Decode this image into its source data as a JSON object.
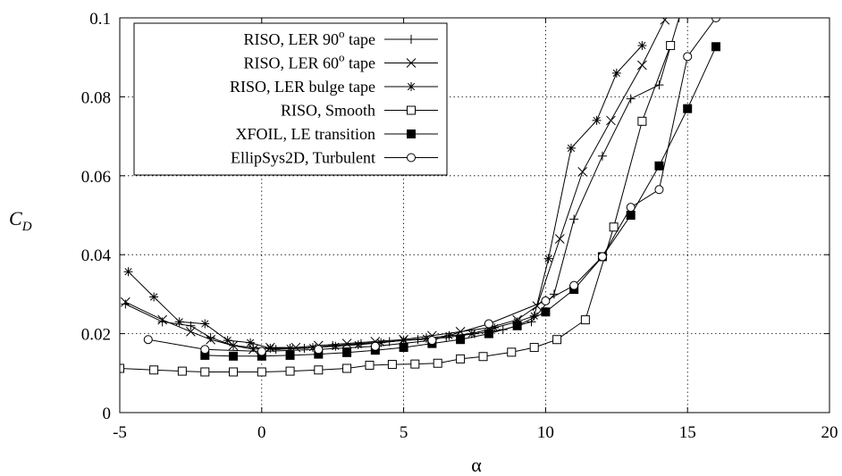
{
  "chart_data": {
    "type": "line",
    "xlabel": "α",
    "ylabel": "C",
    "ylabel_sub": "D",
    "xlim": [
      -5,
      20
    ],
    "ylim": [
      0,
      0.1
    ],
    "xticks": [
      "-5",
      "0",
      "5",
      "10",
      "15",
      "20"
    ],
    "yticks": [
      "0",
      "0.02",
      "0.04",
      "0.06",
      "0.08",
      "0.1"
    ],
    "xtick_values": [
      -5,
      0,
      5,
      10,
      15,
      20
    ],
    "ytick_values": [
      0,
      0.02,
      0.04,
      0.06,
      0.08,
      0.1
    ],
    "grid": true,
    "legend_position": "top-left",
    "series": [
      {
        "name": "RISO, LER 90",
        "name_sup": "o",
        "name_suffix": " tape",
        "marker": "plus",
        "x": [
          -4.8,
          -3.5,
          -2.5,
          -1.8,
          -1.0,
          -0.3,
          0.5,
          1.5,
          2.5,
          3.5,
          4.5,
          5.5,
          6.5,
          7.5,
          8.5,
          9.5,
          10.3,
          11.0,
          12.0,
          13.0,
          14.0,
          14.7
        ],
        "y": [
          0.0275,
          0.023,
          0.022,
          0.019,
          0.017,
          0.0165,
          0.016,
          0.0163,
          0.017,
          0.0175,
          0.018,
          0.0185,
          0.019,
          0.02,
          0.021,
          0.023,
          0.03,
          0.049,
          0.065,
          0.0795,
          0.083,
          0.1
        ]
      },
      {
        "name": "RISO, LER 60",
        "name_sup": "o",
        "name_suffix": " tape",
        "marker": "x",
        "x": [
          -4.8,
          -3.5,
          -2.5,
          -1.8,
          -1.0,
          -0.3,
          0.3,
          1.2,
          2.0,
          3.0,
          4.0,
          5.0,
          6.0,
          7.0,
          8.0,
          9.0,
          9.7,
          10.5,
          11.3,
          12.3,
          13.4,
          14.2
        ],
        "y": [
          0.028,
          0.0235,
          0.0205,
          0.0185,
          0.017,
          0.016,
          0.0165,
          0.0165,
          0.017,
          0.0175,
          0.018,
          0.0185,
          0.0195,
          0.0205,
          0.0215,
          0.0235,
          0.027,
          0.044,
          0.061,
          0.074,
          0.088,
          0.0995
        ]
      },
      {
        "name": "RISO, LER bulge tape",
        "name_sup": "",
        "name_suffix": "",
        "marker": "star",
        "x": [
          -4.7,
          -3.8,
          -2.9,
          -2.0,
          -1.2,
          -0.4,
          0.3,
          1.0,
          1.8,
          2.6,
          3.4,
          4.2,
          5.0,
          5.8,
          6.6,
          7.4,
          8.2,
          9.0,
          9.6,
          10.1,
          10.9,
          11.8,
          12.5,
          13.4
        ],
        "y": [
          0.0357,
          0.0293,
          0.023,
          0.0225,
          0.0183,
          0.0177,
          0.0163,
          0.0163,
          0.0165,
          0.0168,
          0.0172,
          0.0177,
          0.0183,
          0.0188,
          0.0195,
          0.02,
          0.0215,
          0.023,
          0.0245,
          0.039,
          0.067,
          0.074,
          0.086,
          0.093
        ]
      },
      {
        "name": "RISO, Smooth",
        "name_sup": "",
        "name_suffix": "",
        "marker": "square-open",
        "x": [
          -5.0,
          -3.8,
          -2.8,
          -2.0,
          -1.0,
          0.0,
          1.0,
          2.0,
          3.0,
          3.8,
          4.6,
          5.4,
          6.2,
          7.0,
          7.8,
          8.8,
          9.6,
          10.4,
          11.4,
          12.4,
          13.4,
          14.4
        ],
        "y": [
          0.0112,
          0.0108,
          0.0105,
          0.0103,
          0.0103,
          0.0103,
          0.0105,
          0.0108,
          0.0112,
          0.012,
          0.0122,
          0.0123,
          0.0125,
          0.0136,
          0.0142,
          0.0153,
          0.0165,
          0.0185,
          0.0235,
          0.047,
          0.0738,
          0.093
        ]
      },
      {
        "name": "XFOIL, LE transition",
        "name_sup": "",
        "name_suffix": "",
        "marker": "square-filled",
        "x": [
          -2.0,
          -1.0,
          0.0,
          1.0,
          2.0,
          3.0,
          4.0,
          5.0,
          6.0,
          7.0,
          8.0,
          9.0,
          10.0,
          11.0,
          12.0,
          13.0,
          14.0,
          15.0,
          16.0
        ],
        "y": [
          0.0145,
          0.0143,
          0.0143,
          0.0145,
          0.0148,
          0.0152,
          0.0158,
          0.0165,
          0.0175,
          0.0185,
          0.02,
          0.022,
          0.0255,
          0.0312,
          0.0395,
          0.05,
          0.0625,
          0.077,
          0.0927
        ]
      },
      {
        "name": "EllipSys2D, Turbulent",
        "name_sup": "",
        "name_suffix": "",
        "marker": "circle-open",
        "x": [
          -4.0,
          -2.0,
          0.0,
          2.0,
          4.0,
          6.0,
          8.0,
          10.0,
          11.0,
          12.0,
          13.0,
          14.0,
          15.0,
          16.0
        ],
        "y": [
          0.0185,
          0.016,
          0.0155,
          0.016,
          0.0168,
          0.0183,
          0.0225,
          0.0283,
          0.0322,
          0.0395,
          0.052,
          0.0565,
          0.0902,
          0.1
        ]
      }
    ]
  }
}
